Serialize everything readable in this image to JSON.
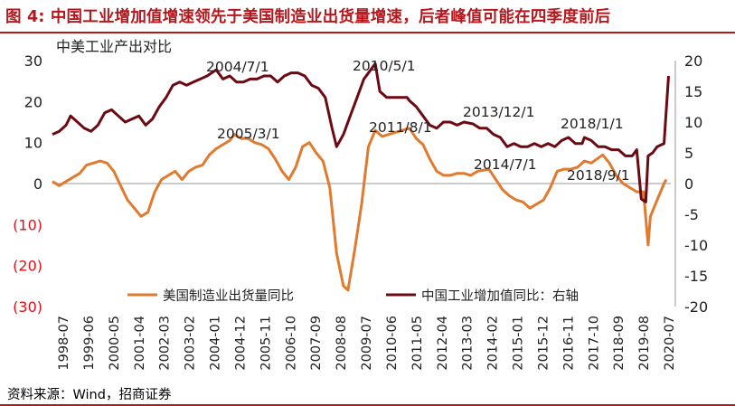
{
  "header": {
    "title": "图 4: 中国工业增加值增速领先于美国制造业出货量增速，后者峰值可能在四季度前后"
  },
  "footer": {
    "source": "资料来源：Wind，招商证券"
  },
  "colors": {
    "us_series": "#e07a2e",
    "cn_series": "#6b0a13",
    "title": "#b5171d",
    "negative_tick": "#e0101a"
  },
  "chart_data": {
    "type": "line",
    "title": "中美工业产出对比",
    "legend_position": "bottom-inside",
    "grid": false,
    "left_axis": {
      "ylim": [
        -30,
        30
      ],
      "ticks": [
        "30",
        "20",
        "10",
        "0",
        "(10)",
        "(20)",
        "(30)"
      ]
    },
    "right_axis": {
      "ylim": [
        -20,
        20
      ],
      "ticks": [
        "20",
        "15",
        "10",
        "5",
        "0",
        "-5",
        "-10",
        "-15",
        "-20"
      ]
    },
    "x_tick_labels": [
      "1998-07",
      "1999-06",
      "2000-05",
      "2001-04",
      "2002-03",
      "2003-02",
      "2004-01",
      "2004-12",
      "2005-11",
      "2006-10",
      "2007-09",
      "2008-08",
      "2009-07",
      "2010-06",
      "2011-05",
      "2012-04",
      "2013-03",
      "2014-02",
      "2015-01",
      "2015-12",
      "2016-11",
      "2017-10",
      "2018-09",
      "2019-08",
      "2020-07"
    ],
    "annotations": [
      {
        "text": "2004/7/1"
      },
      {
        "text": "2010/5/1"
      },
      {
        "text": "2005/3/1"
      },
      {
        "text": "2011/8/1"
      },
      {
        "text": "2013/12/1"
      },
      {
        "text": "2014/7/1"
      },
      {
        "text": "2018/1/1"
      },
      {
        "text": "2018/9/1"
      }
    ],
    "series": [
      {
        "name": "美国制造业出货量同比",
        "axis": "left",
        "points": [
          [
            "1998-07",
            0.5
          ],
          [
            "1998-10",
            -0.5
          ],
          [
            "1999-01",
            0.5
          ],
          [
            "1999-04",
            1.5
          ],
          [
            "1999-07",
            2.5
          ],
          [
            "1999-10",
            4.5
          ],
          [
            "2000-01",
            5
          ],
          [
            "2000-04",
            5.5
          ],
          [
            "2000-07",
            5
          ],
          [
            "2000-10",
            3
          ],
          [
            "2001-01",
            -0.5
          ],
          [
            "2001-04",
            -4
          ],
          [
            "2001-07",
            -6
          ],
          [
            "2001-10",
            -8
          ],
          [
            "2002-01",
            -7
          ],
          [
            "2002-04",
            -2
          ],
          [
            "2002-07",
            1
          ],
          [
            "2002-10",
            2
          ],
          [
            "2003-01",
            3
          ],
          [
            "2003-04",
            1
          ],
          [
            "2003-07",
            3
          ],
          [
            "2003-10",
            4
          ],
          [
            "2004-01",
            4.5
          ],
          [
            "2004-04",
            7
          ],
          [
            "2004-07",
            8.5
          ],
          [
            "2004-10",
            9.5
          ],
          [
            "2005-01",
            10.5
          ],
          [
            "2005-03",
            12
          ],
          [
            "2005-06",
            11
          ],
          [
            "2005-09",
            11
          ],
          [
            "2005-12",
            10
          ],
          [
            "2006-03",
            9.5
          ],
          [
            "2006-06",
            8.5
          ],
          [
            "2006-09",
            6
          ],
          [
            "2006-12",
            3
          ],
          [
            "2007-03",
            1
          ],
          [
            "2007-06",
            4
          ],
          [
            "2007-09",
            9
          ],
          [
            "2007-12",
            10
          ],
          [
            "2008-03",
            7.5
          ],
          [
            "2008-06",
            5.5
          ],
          [
            "2008-09",
            -1
          ],
          [
            "2008-12",
            -17
          ],
          [
            "2009-03",
            -25
          ],
          [
            "2009-05",
            -26
          ],
          [
            "2009-08",
            -16
          ],
          [
            "2009-11",
            -5
          ],
          [
            "2010-02",
            9
          ],
          [
            "2010-05",
            13
          ],
          [
            "2010-08",
            11.5
          ],
          [
            "2010-11",
            12
          ],
          [
            "2011-02",
            12.5
          ],
          [
            "2011-05",
            13
          ],
          [
            "2011-08",
            13.5
          ],
          [
            "2011-11",
            11
          ],
          [
            "2012-02",
            9.5
          ],
          [
            "2012-05",
            6
          ],
          [
            "2012-08",
            3
          ],
          [
            "2012-11",
            2
          ],
          [
            "2013-02",
            2
          ],
          [
            "2013-05",
            2.5
          ],
          [
            "2013-08",
            2.5
          ],
          [
            "2013-11",
            2
          ],
          [
            "2014-02",
            3
          ],
          [
            "2014-07",
            3.5
          ],
          [
            "2014-10",
            1
          ],
          [
            "2015-01",
            -1.5
          ],
          [
            "2015-04",
            -3
          ],
          [
            "2015-07",
            -4
          ],
          [
            "2015-10",
            -4.5
          ],
          [
            "2016-01",
            -6
          ],
          [
            "2016-04",
            -5
          ],
          [
            "2016-07",
            -4
          ],
          [
            "2016-10",
            -1
          ],
          [
            "2017-01",
            3
          ],
          [
            "2017-04",
            3.5
          ],
          [
            "2017-07",
            3.5
          ],
          [
            "2017-10",
            4
          ],
          [
            "2018-01",
            5.5
          ],
          [
            "2018-04",
            5
          ],
          [
            "2018-09",
            7
          ],
          [
            "2018-12",
            5
          ],
          [
            "2019-03",
            2
          ],
          [
            "2019-06",
            0
          ],
          [
            "2019-09",
            -1
          ],
          [
            "2019-12",
            -2
          ],
          [
            "2020-03",
            -2
          ],
          [
            "2020-05",
            -15
          ],
          [
            "2020-06",
            -8
          ],
          [
            "2020-09",
            -4
          ],
          [
            "2020-12",
            0
          ],
          [
            "2021-01",
            1
          ]
        ]
      },
      {
        "name": "中国工业增加值同比：右轴",
        "axis": "right",
        "points": [
          [
            "1998-07",
            8
          ],
          [
            "1998-10",
            8.5
          ],
          [
            "1999-01",
            9.5
          ],
          [
            "1999-03",
            11
          ],
          [
            "1999-06",
            10
          ],
          [
            "1999-09",
            9
          ],
          [
            "1999-12",
            8.5
          ],
          [
            "2000-03",
            9.5
          ],
          [
            "2000-06",
            11.5
          ],
          [
            "2000-09",
            12
          ],
          [
            "2000-12",
            11
          ],
          [
            "2001-03",
            10
          ],
          [
            "2001-06",
            10.5
          ],
          [
            "2001-09",
            11
          ],
          [
            "2001-12",
            9.5
          ],
          [
            "2002-03",
            10.5
          ],
          [
            "2002-06",
            12.5
          ],
          [
            "2002-09",
            14
          ],
          [
            "2002-12",
            16
          ],
          [
            "2003-03",
            16.5
          ],
          [
            "2003-06",
            16
          ],
          [
            "2003-09",
            16.5
          ],
          [
            "2003-12",
            17
          ],
          [
            "2004-03",
            17.5
          ],
          [
            "2004-07",
            18.5
          ],
          [
            "2004-10",
            17
          ],
          [
            "2005-01",
            17.5
          ],
          [
            "2005-04",
            16.5
          ],
          [
            "2005-07",
            16.5
          ],
          [
            "2005-10",
            17
          ],
          [
            "2006-01",
            17
          ],
          [
            "2006-04",
            17.5
          ],
          [
            "2006-07",
            17.5
          ],
          [
            "2006-10",
            16.5
          ],
          [
            "2007-01",
            17.5
          ],
          [
            "2007-04",
            18
          ],
          [
            "2007-07",
            18
          ],
          [
            "2007-10",
            17.5
          ],
          [
            "2008-01",
            16
          ],
          [
            "2008-04",
            15.5
          ],
          [
            "2008-07",
            14
          ],
          [
            "2008-10",
            9
          ],
          [
            "2008-12",
            6
          ],
          [
            "2009-03",
            8
          ],
          [
            "2009-06",
            11
          ],
          [
            "2009-09",
            14
          ],
          [
            "2009-12",
            17
          ],
          [
            "2010-03",
            18.5
          ],
          [
            "2010-05",
            19.5
          ],
          [
            "2010-07",
            15
          ],
          [
            "2010-10",
            14
          ],
          [
            "2011-01",
            14
          ],
          [
            "2011-04",
            14
          ],
          [
            "2011-07",
            14
          ],
          [
            "2011-08",
            13.5
          ],
          [
            "2011-11",
            12.5
          ],
          [
            "2012-02",
            11
          ],
          [
            "2012-05",
            9.5
          ],
          [
            "2012-08",
            9
          ],
          [
            "2012-11",
            10
          ],
          [
            "2013-02",
            10
          ],
          [
            "2013-05",
            9.5
          ],
          [
            "2013-08",
            10
          ],
          [
            "2013-12",
            9.7
          ],
          [
            "2014-03",
            9
          ],
          [
            "2014-06",
            9
          ],
          [
            "2014-09",
            8
          ],
          [
            "2014-12",
            7.5
          ],
          [
            "2015-03",
            6
          ],
          [
            "2015-06",
            6.5
          ],
          [
            "2015-09",
            6
          ],
          [
            "2015-12",
            6
          ],
          [
            "2016-03",
            6.5
          ],
          [
            "2016-06",
            6
          ],
          [
            "2016-09",
            6.5
          ],
          [
            "2016-12",
            6
          ],
          [
            "2017-03",
            7
          ],
          [
            "2017-06",
            7.5
          ],
          [
            "2017-09",
            6.5
          ],
          [
            "2017-12",
            6.5
          ],
          [
            "2018-01",
            7.5
          ],
          [
            "2018-04",
            7
          ],
          [
            "2018-07",
            6
          ],
          [
            "2018-10",
            6
          ],
          [
            "2019-01",
            5.5
          ],
          [
            "2019-04",
            5.5
          ],
          [
            "2019-07",
            4.5
          ],
          [
            "2019-10",
            4.5
          ],
          [
            "2019-12",
            5.5
          ],
          [
            "2020-02",
            -2.5
          ],
          [
            "2020-04",
            -3
          ],
          [
            "2020-05",
            4.5
          ],
          [
            "2020-07",
            5
          ],
          [
            "2020-09",
            6
          ],
          [
            "2020-12",
            6.5
          ],
          [
            "2021-02",
            17.5
          ]
        ]
      }
    ]
  }
}
